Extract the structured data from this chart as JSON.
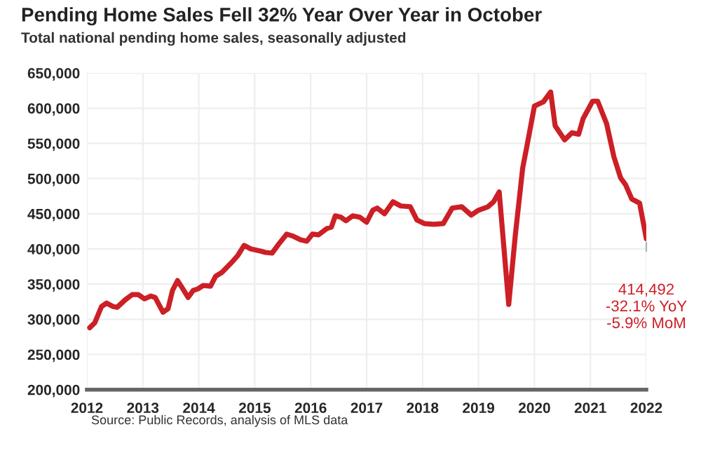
{
  "chart_data": {
    "type": "line",
    "title": "Pending Home Sales Fell 32% Year Over Year in October",
    "subtitle": "Total national pending home sales, seasonally adjusted",
    "x": [
      2012.05,
      2012.14,
      2012.26,
      2012.35,
      2012.47,
      2012.54,
      2012.69,
      2012.81,
      2012.92,
      2013.03,
      2013.14,
      2013.22,
      2013.36,
      2013.45,
      2013.53,
      2013.62,
      2013.7,
      2013.81,
      2013.9,
      2013.98,
      2014.08,
      2014.21,
      2014.3,
      2014.42,
      2014.59,
      2014.7,
      2014.81,
      2014.93,
      2015.1,
      2015.19,
      2015.31,
      2015.44,
      2015.57,
      2015.69,
      2015.82,
      2015.93,
      2016.03,
      2016.14,
      2016.29,
      2016.37,
      2016.44,
      2016.54,
      2016.63,
      2016.75,
      2016.88,
      2017.0,
      2017.11,
      2017.19,
      2017.32,
      2017.47,
      2017.61,
      2017.78,
      2017.9,
      2018.03,
      2018.2,
      2018.37,
      2018.53,
      2018.7,
      2018.87,
      2019.0,
      2019.17,
      2019.27,
      2019.37,
      2019.54,
      2019.66,
      2019.79,
      2019.87,
      2020.0,
      2020.16,
      2020.29,
      2020.37,
      2020.54,
      2020.67,
      2020.79,
      2020.87,
      2021.04,
      2021.13,
      2021.29,
      2021.42,
      2021.54,
      2021.63,
      2021.74,
      2021.88,
      2022.0
    ],
    "series": [
      {
        "color": "#cc1f26",
        "values": [
          288000,
          295000,
          318000,
          323000,
          318000,
          317000,
          328000,
          335000,
          335000,
          329000,
          333000,
          331000,
          310000,
          315000,
          341000,
          355000,
          345000,
          331000,
          341000,
          343000,
          348000,
          347000,
          361000,
          367000,
          381000,
          391000,
          405000,
          400000,
          397000,
          395000,
          394000,
          408000,
          421000,
          418000,
          413000,
          411000,
          421000,
          420000,
          429000,
          431000,
          447000,
          445000,
          440000,
          447000,
          445000,
          438000,
          455000,
          458000,
          450000,
          467000,
          461000,
          460000,
          441000,
          436000,
          435000,
          436000,
          458000,
          460000,
          448000,
          455000,
          460000,
          467000,
          481000,
          321000,
          421000,
          515000,
          548000,
          603000,
          609000,
          623000,
          575000,
          555000,
          565000,
          563000,
          585000,
          610000,
          610000,
          578000,
          531000,
          501000,
          491000,
          471000,
          465000,
          414492
        ]
      }
    ],
    "xlim": [
      2012,
      2022
    ],
    "xticks": [
      2012,
      2013,
      2014,
      2015,
      2016,
      2017,
      2018,
      2019,
      2020,
      2021,
      2022
    ],
    "ylim": [
      200000,
      650000
    ],
    "yticks": [
      {
        "value": 200000,
        "label": "200,000"
      },
      {
        "value": 250000,
        "label": "250,000"
      },
      {
        "value": 300000,
        "label": "300,000"
      },
      {
        "value": 350000,
        "label": "350,000"
      },
      {
        "value": 400000,
        "label": "400,000"
      },
      {
        "value": 450000,
        "label": "450,000"
      },
      {
        "value": 500000,
        "label": "500,000"
      },
      {
        "value": 550000,
        "label": "550,000"
      },
      {
        "value": 600000,
        "label": "600,000"
      },
      {
        "value": 650000,
        "label": "650,000"
      }
    ],
    "grid": true,
    "line_style": "solid",
    "marker": "none",
    "annotations": [
      {
        "text": "414,492\n-32.1% YoY\n-5.9% MoM",
        "x": 2022.0,
        "y": 414492
      },
      "Source: Public Records, analysis of MLS data"
    ]
  }
}
